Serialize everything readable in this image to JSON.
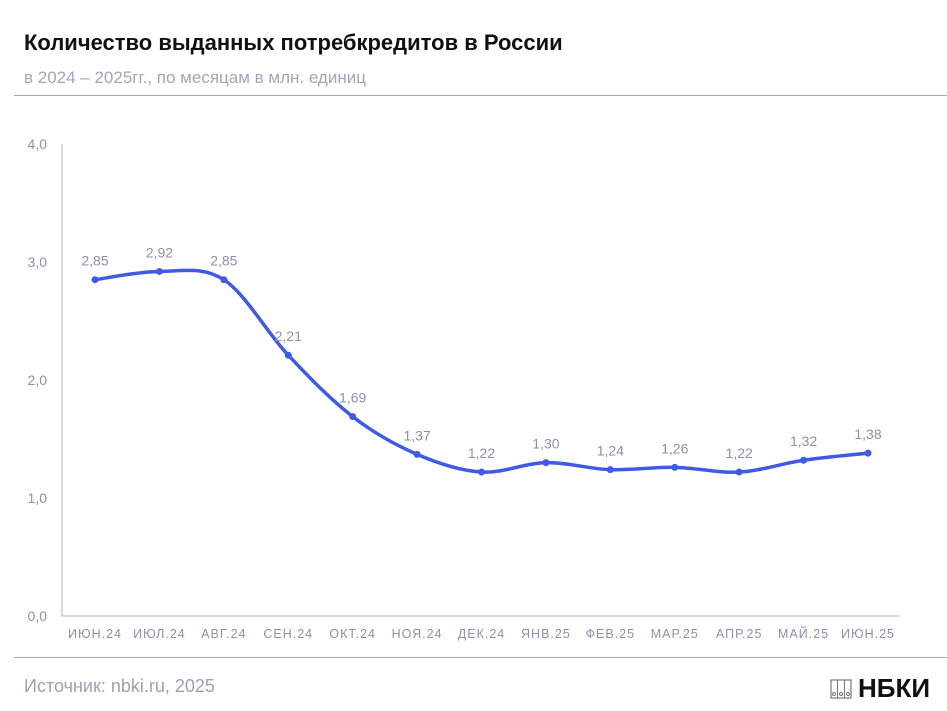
{
  "title": "Количество выданных потребкредитов в России",
  "subtitle": "в 2024 – 2025гг., по месяцам в млн. единиц",
  "source": "Источник: nbki.ru, 2025",
  "logo": "НБКИ",
  "colors": {
    "line": "#3f5be6",
    "label": "#8e8fab",
    "axis": "#b0b2c4"
  },
  "chart_data": {
    "type": "line",
    "categories": [
      "ИЮН.24",
      "ИЮЛ.24",
      "АВГ.24",
      "СЕН.24",
      "ОКТ.24",
      "НОЯ.24",
      "ДЕК.24",
      "ЯНВ.25",
      "ФЕВ.25",
      "МАР.25",
      "АПР.25",
      "МАЙ.25",
      "ИЮН.25"
    ],
    "values": [
      2.85,
      2.92,
      2.85,
      2.21,
      1.69,
      1.37,
      1.22,
      1.3,
      1.24,
      1.26,
      1.22,
      1.32,
      1.38
    ],
    "data_labels": [
      "2,85",
      "2,92",
      "2,85",
      "2,21",
      "1,69",
      "1,37",
      "1,22",
      "1,30",
      "1,24",
      "1,26",
      "1,22",
      "1,32",
      "1,38"
    ],
    "yticks": [
      "0,0",
      "1,0",
      "2,0",
      "3,0",
      "4,0"
    ],
    "ylim": [
      0,
      4
    ],
    "grid": false,
    "smooth": true
  }
}
